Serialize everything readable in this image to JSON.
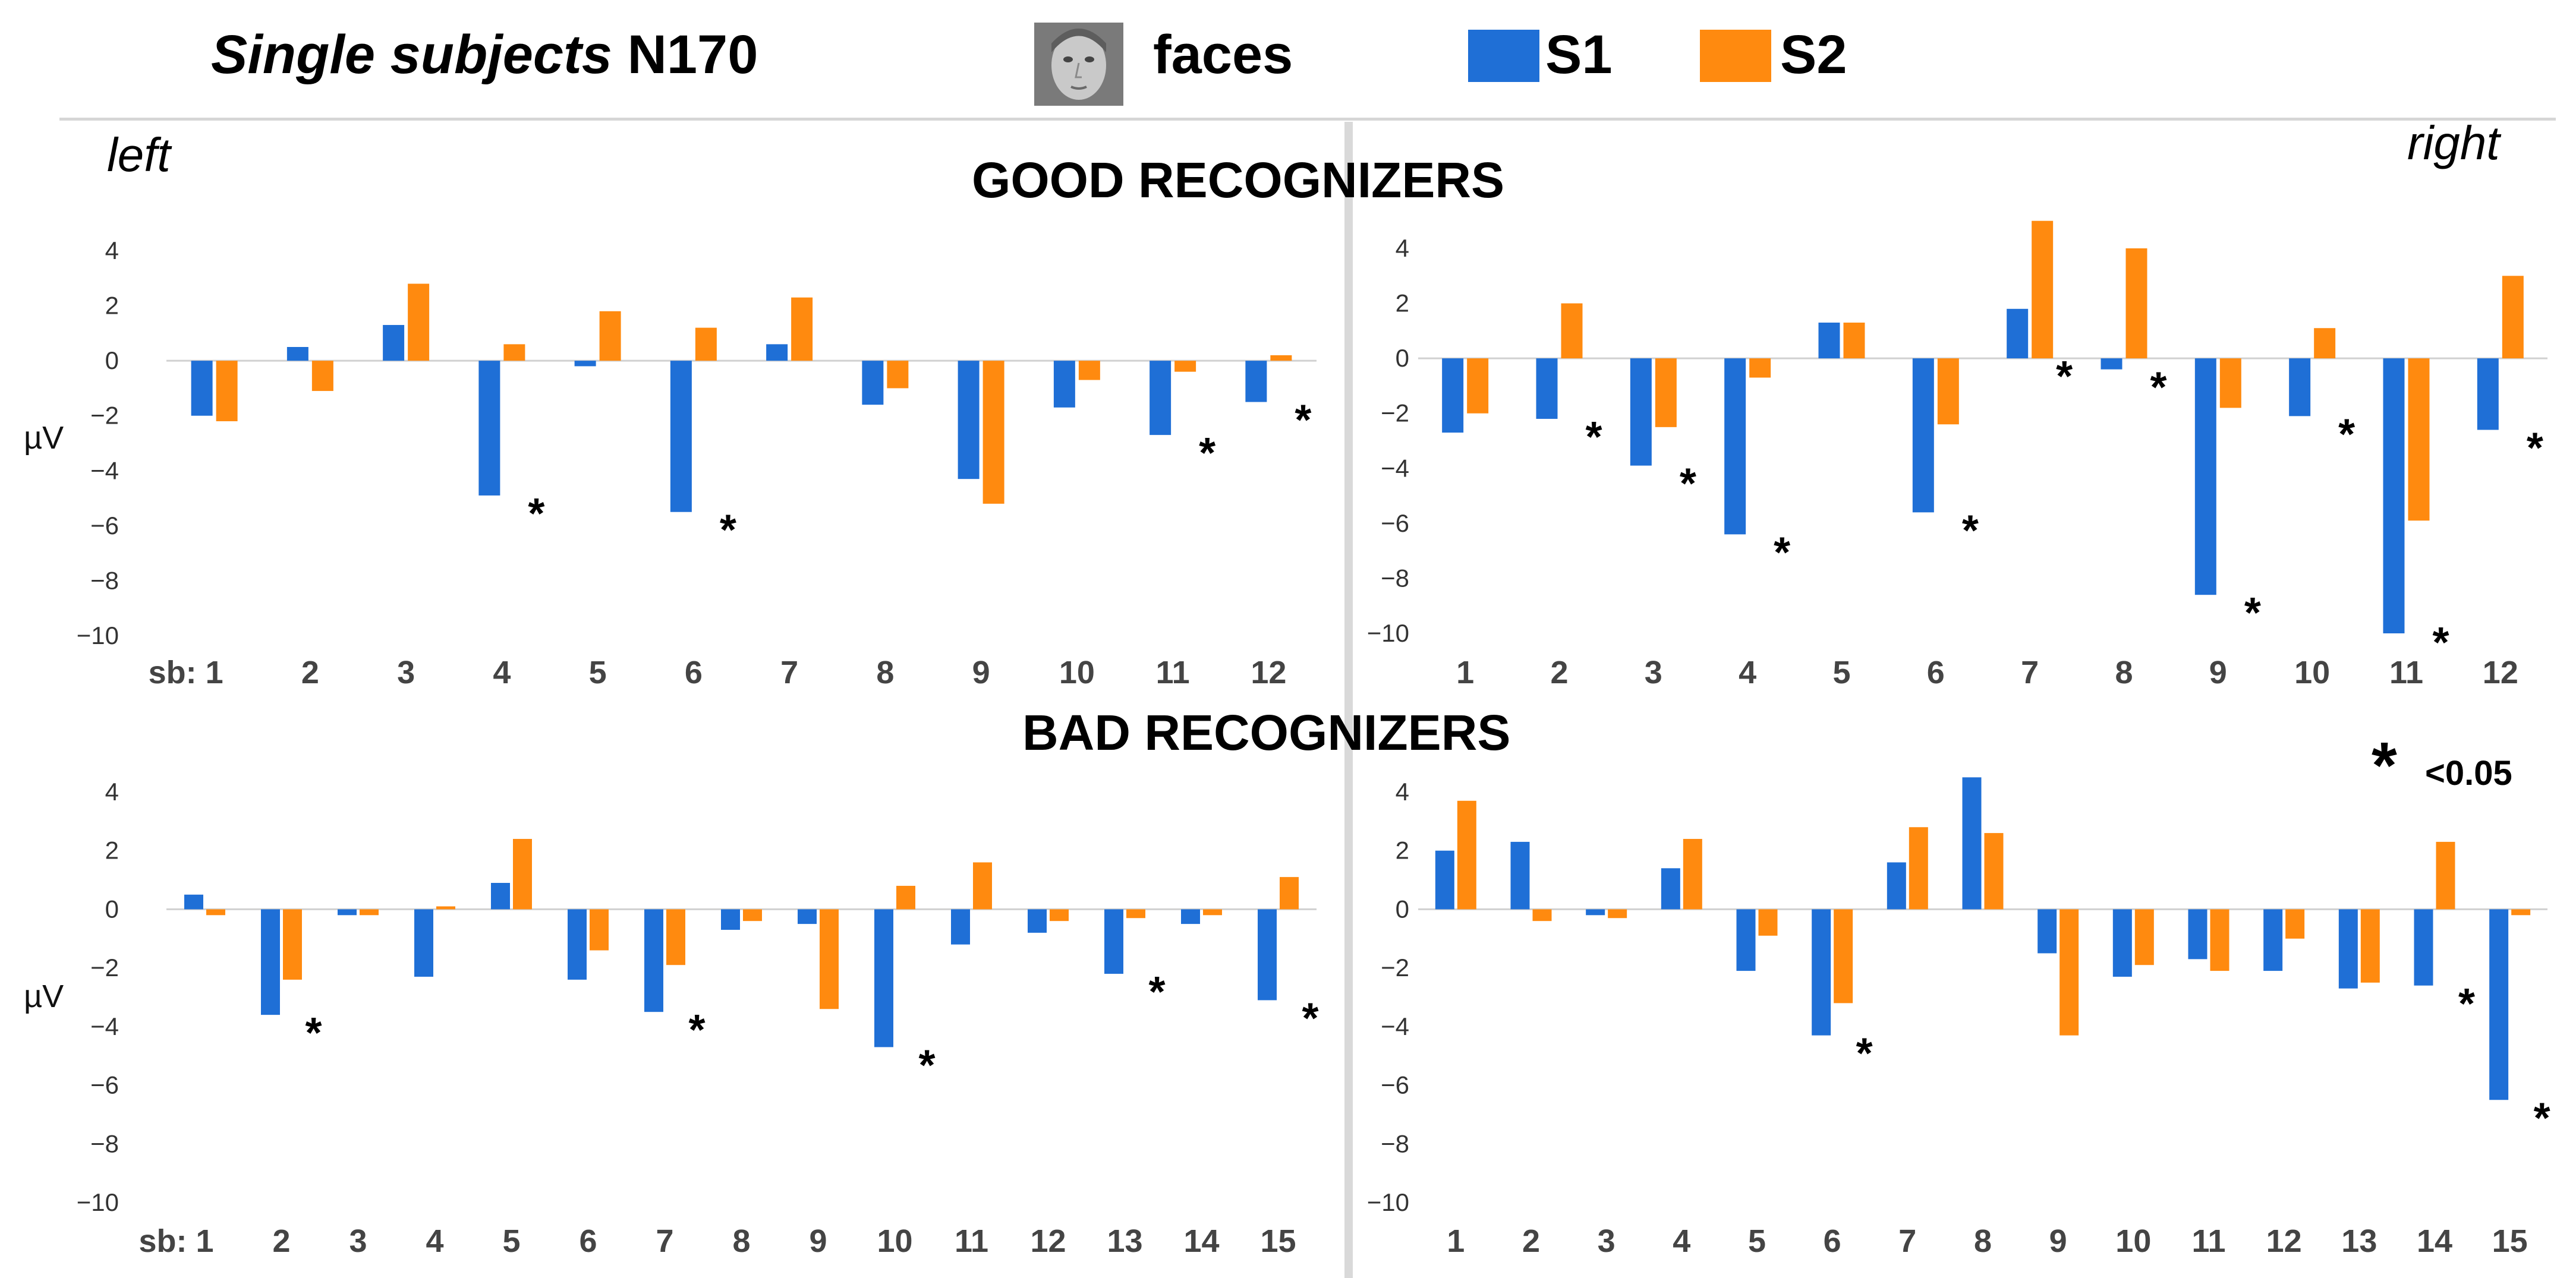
{
  "header": {
    "title_italic": "Single subjects",
    "title_rest": "N170",
    "faces_label": "faces",
    "legend": [
      {
        "name": "S1",
        "color": "#1F6FD6"
      },
      {
        "name": "S2",
        "color": "#FF8A0F"
      }
    ]
  },
  "labels": {
    "left": "left",
    "right": "right",
    "good": "GOOD RECOGNIZERS",
    "bad": "BAD RECOGNIZERS",
    "sig_star": "*",
    "sig_text": "<0.05"
  },
  "chart_data": [
    {
      "type": "bar",
      "id": "good-left",
      "group": "GOOD RECOGNIZERS",
      "hemisphere": "left",
      "categories": [
        "1",
        "2",
        "3",
        "4",
        "5",
        "6",
        "7",
        "8",
        "9",
        "10",
        "11",
        "12"
      ],
      "category_prefix": "sb:",
      "series": [
        {
          "name": "S1",
          "values": [
            -2.0,
            0.5,
            1.3,
            -4.9,
            -0.2,
            -5.5,
            0.6,
            -1.6,
            -4.3,
            -1.7,
            -2.7,
            -1.5
          ]
        },
        {
          "name": "S2",
          "values": [
            -2.2,
            -1.1,
            2.8,
            0.6,
            1.8,
            1.2,
            2.3,
            -1.0,
            -5.2,
            -0.7,
            -0.4,
            0.2
          ]
        }
      ],
      "significant": [
        4,
        6,
        11,
        12
      ],
      "ylabel": "µV",
      "ylim": [
        -10,
        4
      ],
      "yticks": [
        4,
        2,
        0,
        -2,
        -4,
        -6,
        -8,
        -10
      ]
    },
    {
      "type": "bar",
      "id": "good-right",
      "group": "GOOD RECOGNIZERS",
      "hemisphere": "right",
      "categories": [
        "1",
        "2",
        "3",
        "4",
        "5",
        "6",
        "7",
        "8",
        "9",
        "10",
        "11",
        "12"
      ],
      "series": [
        {
          "name": "S1",
          "values": [
            -2.7,
            -2.2,
            -3.9,
            -6.4,
            1.3,
            -5.6,
            1.8,
            -0.4,
            -8.6,
            -2.1,
            -10.0,
            -2.6
          ]
        },
        {
          "name": "S2",
          "values": [
            -2.0,
            2.0,
            -2.5,
            -0.7,
            1.3,
            -2.4,
            5.0,
            4.0,
            -1.8,
            1.1,
            -5.9,
            3.0
          ]
        }
      ],
      "significant": [
        2,
        3,
        4,
        6,
        7,
        8,
        9,
        10,
        11,
        12
      ],
      "ylim": [
        -10,
        4
      ],
      "yticks": [
        4,
        2,
        0,
        -2,
        -4,
        -6,
        -8,
        -10
      ]
    },
    {
      "type": "bar",
      "id": "bad-left",
      "group": "BAD RECOGNIZERS",
      "hemisphere": "left",
      "categories": [
        "1",
        "2",
        "3",
        "4",
        "5",
        "6",
        "7",
        "8",
        "9",
        "10",
        "11",
        "12",
        "13",
        "14",
        "15"
      ],
      "category_prefix": "sb:",
      "series": [
        {
          "name": "S1",
          "values": [
            0.5,
            -3.6,
            -0.2,
            -2.3,
            0.9,
            -2.4,
            -3.5,
            -0.7,
            -0.5,
            -4.7,
            -1.2,
            -0.8,
            -2.2,
            -0.5,
            -3.1
          ]
        },
        {
          "name": "S2",
          "values": [
            -0.2,
            -2.4,
            -0.2,
            0.1,
            2.4,
            -1.4,
            -1.9,
            -0.4,
            -3.4,
            0.8,
            1.6,
            -0.4,
            -0.3,
            -0.2,
            1.1
          ]
        }
      ],
      "significant": [
        2,
        7,
        10,
        13,
        15
      ],
      "ylabel": "µV",
      "ylim": [
        -10,
        4
      ],
      "yticks": [
        4,
        2,
        0,
        -2,
        -4,
        -6,
        -8,
        -10
      ]
    },
    {
      "type": "bar",
      "id": "bad-right",
      "group": "BAD RECOGNIZERS",
      "hemisphere": "right",
      "categories": [
        "1",
        "2",
        "3",
        "4",
        "5",
        "6",
        "7",
        "8",
        "9",
        "10",
        "11",
        "12",
        "13",
        "14",
        "15"
      ],
      "series": [
        {
          "name": "S1",
          "values": [
            2.0,
            2.3,
            -0.2,
            1.4,
            -2.1,
            -4.3,
            1.6,
            4.5,
            -1.5,
            -2.3,
            -1.7,
            -2.1,
            -2.7,
            -2.6,
            -6.5
          ]
        },
        {
          "name": "S2",
          "values": [
            3.7,
            -0.4,
            -0.3,
            2.4,
            -0.9,
            -3.2,
            2.8,
            2.6,
            -4.3,
            -1.9,
            -2.1,
            -1.0,
            -2.5,
            2.3,
            -0.2
          ]
        }
      ],
      "significant": [
        6,
        14,
        15
      ],
      "ylim": [
        -10,
        4
      ],
      "yticks": [
        4,
        2,
        0,
        -2,
        -4,
        -6,
        -8,
        -10
      ]
    }
  ]
}
